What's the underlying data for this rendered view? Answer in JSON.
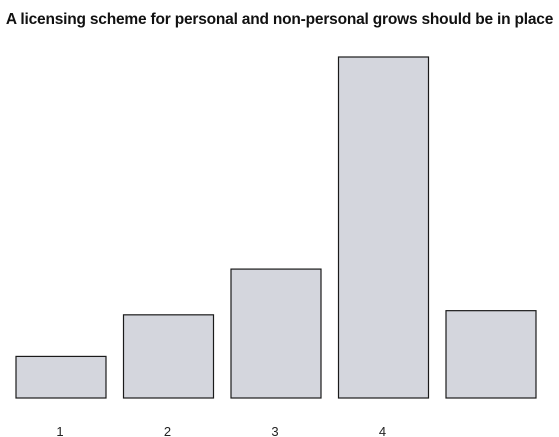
{
  "chart_data": {
    "type": "bar",
    "title": "A licensing scheme for personal and non-personal grows should be in place",
    "categories": [
      "1",
      "2",
      "3",
      "4",
      ""
    ],
    "values": [
      5,
      10,
      15.5,
      41,
      10.5
    ],
    "xlabel": "",
    "ylabel": "",
    "ylim": [
      0,
      41
    ],
    "grid": false,
    "legend": "none",
    "colors": {
      "bar_fill": "#d4d6dd",
      "bar_stroke": "#1a1a1a",
      "text": "#111111"
    }
  }
}
